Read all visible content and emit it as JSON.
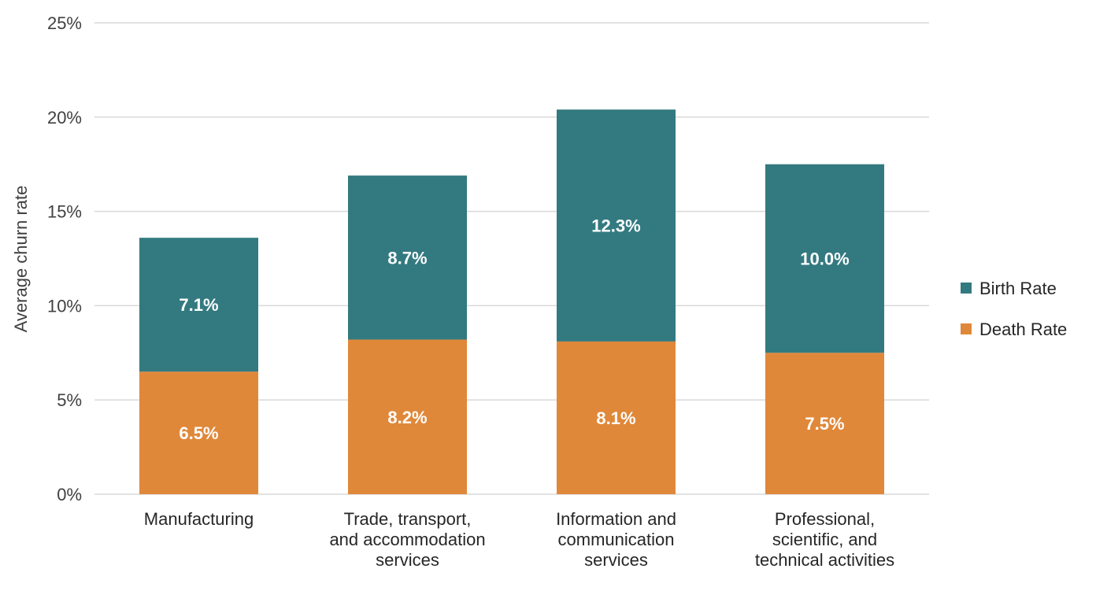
{
  "chart_data": {
    "type": "bar",
    "stacked": true,
    "ylabel": "Average churn rate",
    "ylim": [
      0,
      25
    ],
    "yticks": [
      0,
      5,
      10,
      15,
      20,
      25
    ],
    "ytick_labels": [
      "0%",
      "5%",
      "10%",
      "15%",
      "20%",
      "25%"
    ],
    "grid": true,
    "legend_position": "right",
    "categories": [
      [
        "Manufacturing"
      ],
      [
        "Trade, transport,",
        "and accommodation",
        "services"
      ],
      [
        "Information and",
        "communication",
        "services"
      ],
      [
        "Professional,",
        "scientific, and",
        "technical activities"
      ]
    ],
    "series": [
      {
        "name": "Death Rate",
        "color": "#e0883a",
        "values": [
          6.5,
          8.2,
          8.1,
          7.5
        ],
        "labels": [
          "6.5%",
          "8.2%",
          "8.1%",
          "7.5%"
        ]
      },
      {
        "name": "Birth Rate",
        "color": "#337a80",
        "values": [
          7.1,
          8.7,
          12.3,
          10.0
        ],
        "labels": [
          "7.1%",
          "8.7%",
          "12.3%",
          "10.0%"
        ]
      }
    ],
    "legend_order": [
      1,
      0
    ]
  }
}
